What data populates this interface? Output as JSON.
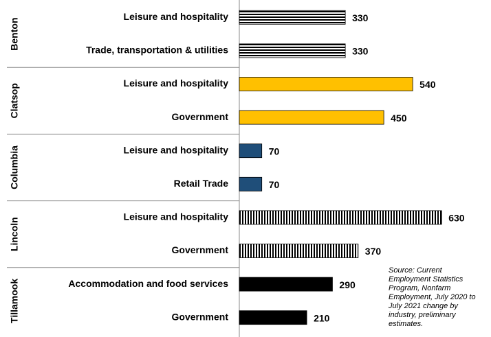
{
  "chart_data": {
    "type": "bar",
    "source": "Source: Current Employment Statistics Program, Nonfarm Employment, July 2020 to July 2021 change by industry, preliminary estimates.",
    "groups": [
      {
        "name": "Benton",
        "color": "#000000",
        "pattern": "horizontal-stripes",
        "categories": [
          "Leisure and hospitality",
          "Trade, transportation & utilities"
        ],
        "values": [
          330,
          330
        ]
      },
      {
        "name": "Clatsop",
        "color": "#ffc000",
        "pattern": "solid",
        "categories": [
          "Leisure and hospitality",
          "Government"
        ],
        "values": [
          540,
          450
        ]
      },
      {
        "name": "Columbia",
        "color": "#1f4e79",
        "pattern": "solid",
        "categories": [
          "Leisure and hospitality",
          "Retail Trade"
        ],
        "values": [
          70,
          70
        ]
      },
      {
        "name": "Lincoln",
        "color": "#000000",
        "pattern": "vertical-stripes",
        "categories": [
          "Leisure and hospitality",
          "Government"
        ],
        "values": [
          630,
          370
        ]
      },
      {
        "name": "Tillamook",
        "color": "#000000",
        "pattern": "solid",
        "categories": [
          "Accommodation and food services",
          "Government"
        ],
        "values": [
          290,
          210
        ]
      }
    ]
  }
}
